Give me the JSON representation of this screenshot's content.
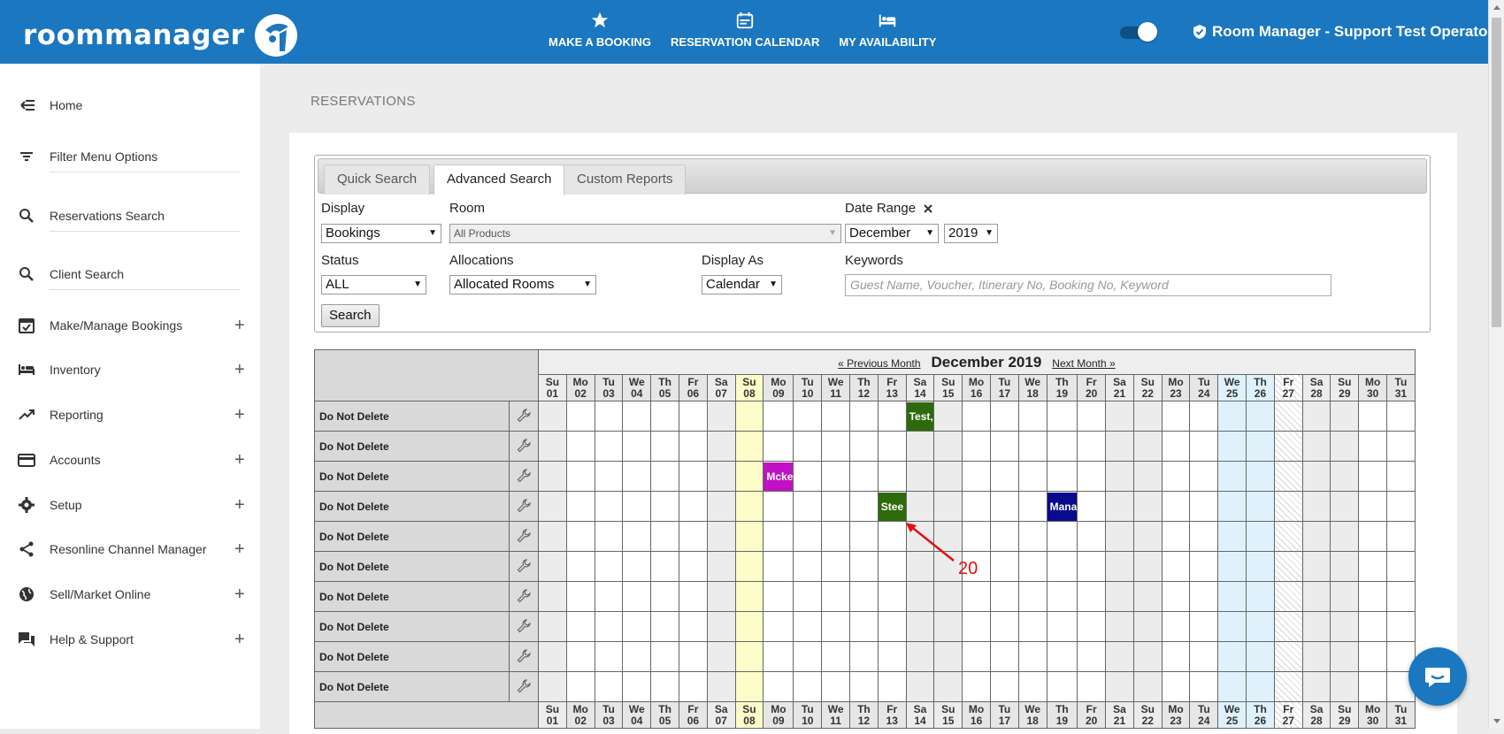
{
  "header": {
    "logo_text": "roommanager",
    "nav": [
      {
        "label": "MAKE A BOOKING",
        "icon": "star-icon"
      },
      {
        "label": "RESERVATION CALENDAR",
        "icon": "calendar-icon"
      },
      {
        "label": "MY AVAILABILITY",
        "icon": "bed-icon"
      }
    ],
    "user_label": "Room Manager - Support Test Operator"
  },
  "sidebar": {
    "items": [
      {
        "label": "Home",
        "icon": "back-menu-icon",
        "expandable": false
      },
      {
        "label": "Filter Menu Options",
        "icon": "filter-icon",
        "expandable": false
      },
      {
        "label": "Reservations Search",
        "icon": "search-icon",
        "expandable": false
      },
      {
        "label": "Client Search",
        "icon": "search-icon",
        "expandable": false
      },
      {
        "label": "Make/Manage Bookings",
        "icon": "calendar-check-icon",
        "expandable": true
      },
      {
        "label": "Inventory",
        "icon": "bed-icon",
        "expandable": true
      },
      {
        "label": "Reporting",
        "icon": "trending-up-icon",
        "expandable": true
      },
      {
        "label": "Accounts",
        "icon": "credit-card-icon",
        "expandable": true
      },
      {
        "label": "Setup",
        "icon": "gear-icon",
        "expandable": true
      },
      {
        "label": "Resonline Channel Manager",
        "icon": "share-icon",
        "expandable": true
      },
      {
        "label": "Sell/Market Online",
        "icon": "globe-icon",
        "expandable": true
      },
      {
        "label": "Help & Support",
        "icon": "chat-bubbles-icon",
        "expandable": true
      }
    ],
    "plus": "+"
  },
  "page": {
    "title": "RESERVATIONS"
  },
  "search": {
    "tabs": [
      "Quick Search",
      "Advanced Search",
      "Custom Reports"
    ],
    "active_tab": "Advanced Search",
    "display_label": "Display",
    "display_value": "Bookings",
    "room_label": "Room",
    "room_value": "All Products",
    "date_range_label": "Date Range",
    "month_value": "December",
    "year_value": "2019",
    "status_label": "Status",
    "status_value": "ALL",
    "allocations_label": "Allocations",
    "allocations_value": "Allocated Rooms",
    "display_as_label": "Display As",
    "display_as_value": "Calendar",
    "keywords_label": "Keywords",
    "keywords_placeholder": "Guest Name, Voucher, Itinerary No, Booking No, Keyword",
    "search_button": "Search",
    "caret": "▼"
  },
  "calendar": {
    "prev_label": "« Previous Month",
    "title": "December 2019",
    "next_label": "Next Month »",
    "days": [
      "Su",
      "Mo",
      "Tu",
      "We",
      "Th",
      "Fr",
      "Sa",
      "Su",
      "Mo",
      "Tu",
      "We",
      "Th",
      "Fr",
      "Sa",
      "Su",
      "Mo",
      "Tu",
      "We",
      "Th",
      "Fr",
      "Sa",
      "Su",
      "Mo",
      "Tu",
      "We",
      "Th",
      "Fr",
      "Sa",
      "Su",
      "Mo",
      "Tu"
    ],
    "dates": [
      "01",
      "02",
      "03",
      "04",
      "05",
      "06",
      "07",
      "08",
      "09",
      "10",
      "11",
      "12",
      "13",
      "14",
      "15",
      "16",
      "17",
      "18",
      "19",
      "20",
      "21",
      "22",
      "23",
      "24",
      "25",
      "26",
      "27",
      "28",
      "29",
      "30",
      "31"
    ],
    "today_index": 7,
    "highlight_indices": [
      24,
      25
    ],
    "hatched_index": 26,
    "rooms": [
      "Do Not Delete",
      "Do Not Delete",
      "Do Not Delete",
      "Do Not Delete",
      "Do Not Delete",
      "Do Not Delete",
      "Do Not Delete",
      "Do Not Delete",
      "Do Not Delete",
      "Do Not Delete"
    ],
    "bookings": [
      {
        "row": 0,
        "day": 13,
        "label": "Test,",
        "color": "#2d6a0c"
      },
      {
        "row": 2,
        "day": 8,
        "label": "Mcke",
        "color": "#c012c4"
      },
      {
        "row": 3,
        "day": 12,
        "label": "Stee",
        "color": "#2d6a0c"
      },
      {
        "row": 3,
        "day": 18,
        "label": "Mana",
        "color": "#0a0a8c"
      }
    ]
  },
  "annotation": {
    "label": "20",
    "color": "#e01010"
  }
}
